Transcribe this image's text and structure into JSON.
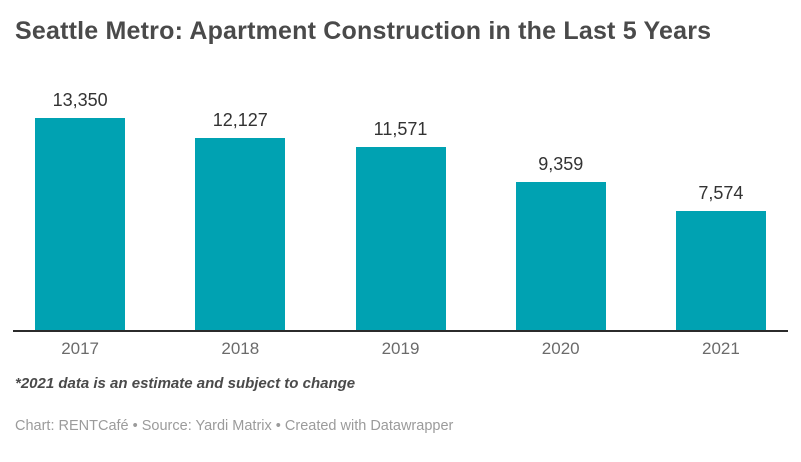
{
  "header": {
    "title": "Seattle Metro: Apartment Construction in the Last 5 Years"
  },
  "chart_data": {
    "type": "bar",
    "title": "Seattle Metro: Apartment Construction in the Last 5 Years",
    "categories": [
      "2017",
      "2018",
      "2019",
      "2020",
      "2021"
    ],
    "values": [
      13350,
      12127,
      11571,
      9359,
      7574
    ],
    "value_labels": [
      "13,350",
      "12,127",
      "11,571",
      "9,359",
      "7,574"
    ],
    "xlabel": "",
    "ylabel": "",
    "ylim": [
      0,
      13350
    ],
    "grid": false,
    "legend": false,
    "data_labels_position": "above-bars",
    "bar_color": "#00a2b2",
    "axis_line_color": "#2b2b2b"
  },
  "footnote": "*2021 data is an estimate and subject to change",
  "source_line": "Chart: RENTCafé • Source: Yardi Matrix • Created with Datawrapper",
  "colors": {
    "background": "#ffffff",
    "bar": "#00a2b2",
    "title_text": "#4a4a4a",
    "value_label_text": "#333333",
    "axis_label_text": "#6b6b6b",
    "footnote_text": "#4a4a4a",
    "source_text": "#9b9b9b"
  }
}
